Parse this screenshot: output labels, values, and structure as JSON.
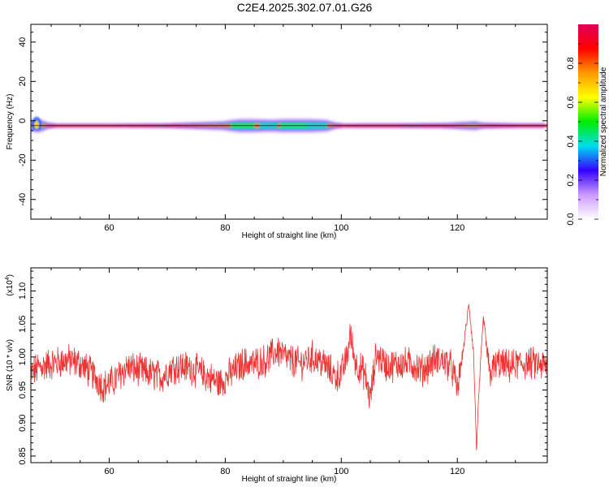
{
  "title": "C2E4.2025.302.07.01.G26",
  "chart_data": [
    {
      "type": "heatmap",
      "xlabel": "Height of straight line (km)",
      "ylabel": "Frequency (Hz)",
      "xlim": [
        46.5,
        135.5
      ],
      "ylim": [
        -50,
        49
      ],
      "x_ticks": [
        "60",
        "80",
        "100",
        "120"
      ],
      "y_ticks": [
        "-40",
        "-20",
        "0",
        "20",
        "40"
      ],
      "band_center_hz": -2.5,
      "colorbar": {
        "label": "Normalized spectral amplitude",
        "range": [
          0,
          1
        ],
        "ticks": [
          "0.0",
          "0.2",
          "0.4",
          "0.6",
          "0.8"
        ],
        "stops": [
          "#ffffff",
          "#cc99ff",
          "#3300ff",
          "#00ddee",
          "#00ee00",
          "#ffff00",
          "#ff9900",
          "#ff0000",
          "#e0005a"
        ]
      },
      "band_width_profile": {
        "x": [
          46.5,
          48,
          50,
          60,
          70,
          75,
          80,
          82,
          85,
          88,
          90,
          92,
          95,
          98,
          99.5,
          105,
          110,
          118,
          121,
          123,
          124,
          130,
          135.5
        ],
        "spread": [
          0.9,
          1.0,
          0.35,
          0.35,
          0.4,
          0.55,
          0.7,
          1.0,
          1.0,
          0.9,
          1.0,
          1.0,
          1.0,
          0.85,
          0.35,
          0.4,
          0.4,
          0.45,
          0.6,
          0.7,
          0.5,
          0.4,
          0.4
        ]
      }
    },
    {
      "type": "line",
      "xlabel": "Height of straight line (km)",
      "ylabel": "SNR (10 * v/v)",
      "y_multiplier": "(x10",
      "y_multiplier_exp": "4",
      "y_multiplier_close": ")",
      "xlim": [
        46.5,
        135.5
      ],
      "ylim": [
        0.84,
        1.135
      ],
      "x_ticks": [
        "60",
        "80",
        "100",
        "120"
      ],
      "y_ticks": [
        "0.85",
        "0.90",
        "0.95",
        "1.00",
        "1.05",
        "1.10"
      ],
      "color": "#ee3333",
      "series": [
        {
          "x": [
            46.5,
            48,
            50,
            53,
            55,
            57,
            59,
            61,
            63,
            65,
            67,
            69,
            71,
            73,
            75,
            77,
            79,
            81,
            83,
            85,
            87,
            89,
            91,
            93,
            95,
            97,
            99,
            100,
            101,
            101.5,
            102.5,
            104,
            105,
            106,
            108,
            110,
            112,
            114,
            116,
            117.5,
            119,
            120,
            121,
            122,
            122.8,
            123.3,
            123.8,
            124.5,
            125.5,
            127,
            129,
            131,
            133,
            135.5
          ],
          "y": [
            0.975,
            0.985,
            0.99,
            0.995,
            0.99,
            0.975,
            0.955,
            0.965,
            0.985,
            0.98,
            0.975,
            0.97,
            0.985,
            0.985,
            0.98,
            0.97,
            0.96,
            0.975,
            0.99,
            0.99,
            0.995,
            1.01,
            0.995,
            0.99,
            1.0,
            0.99,
            0.97,
            0.975,
            1.0,
            1.035,
            0.99,
            0.975,
            0.935,
            1.005,
            0.985,
            0.99,
            0.99,
            0.98,
            0.995,
            0.995,
            0.985,
            0.95,
            1.01,
            1.08,
            1.005,
            0.86,
            0.96,
            1.06,
            0.975,
            0.99,
            0.985,
            0.99,
            0.99,
            0.985
          ],
          "noise_amplitude": 0.022
        }
      ]
    }
  ]
}
